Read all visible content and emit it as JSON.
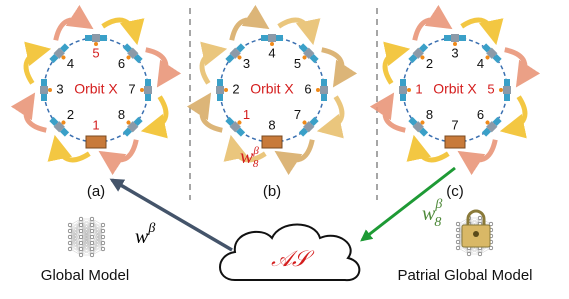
{
  "panels": [
    {
      "label": "(a)",
      "orbit": "Orbit X",
      "satellites": [
        "5",
        "6",
        "7",
        "8",
        "1",
        "2",
        "3",
        "4"
      ]
    },
    {
      "label": "(b)",
      "orbit": "Orbit X",
      "satellites": [
        "4",
        "5",
        "6",
        "7",
        "8",
        "1",
        "2",
        "3"
      ],
      "weight": {
        "base": "w",
        "sub": "8",
        "sup": "β"
      }
    },
    {
      "label": "(c)",
      "orbit": "Orbit X",
      "satellites": [
        "3",
        "4",
        "5",
        "6",
        "7",
        "8",
        "1",
        "2"
      ]
    }
  ],
  "left": {
    "weight": {
      "base": "w",
      "sup": "β"
    },
    "caption": "Global Model"
  },
  "server": "𝒜𝒮",
  "right": {
    "weight": {
      "base": "w",
      "sub": "8",
      "sup": "β"
    },
    "caption": "Patrial Global Model"
  }
}
